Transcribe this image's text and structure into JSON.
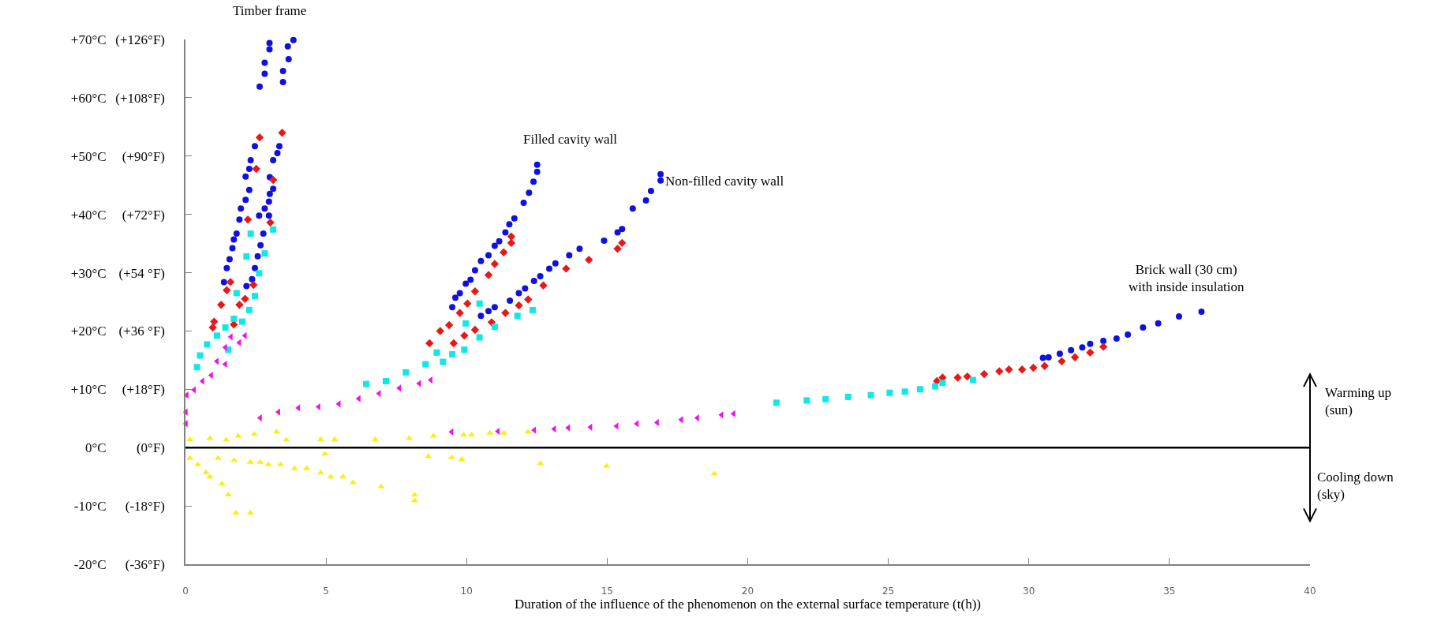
{
  "chart_data": {
    "type": "scatter",
    "xlabel": "Duration of the influence of the phenomenon on the external surface temperature (t(h))",
    "xlim": [
      0,
      40
    ],
    "xticks": [
      0,
      5,
      10,
      15,
      20,
      25,
      30,
      35,
      40
    ],
    "ylim": [
      -20,
      70
    ],
    "yticks": [
      {
        "value": 70,
        "label": "+70°C"
      },
      {
        "value": 60,
        "label": "+60°C"
      },
      {
        "value": 50,
        "label": "+50°C"
      },
      {
        "value": 40,
        "label": "+40°C"
      },
      {
        "value": 30,
        "label": "+30°C"
      },
      {
        "value": 20,
        "label": "+20°C"
      },
      {
        "value": 10,
        "label": "+10°C"
      },
      {
        "value": 0,
        "label": "0°C"
      },
      {
        "value": -10,
        "label": "-10°C"
      },
      {
        "value": -20,
        "label": "-20°C"
      }
    ],
    "y2lim": [
      -36,
      126
    ],
    "y2ticks": [
      {
        "value": 126,
        "label": "(+126°F)"
      },
      {
        "value": 108,
        "label": "(+108°F)"
      },
      {
        "value": 90,
        "label": "(+90°F)"
      },
      {
        "value": 72,
        "label": "(+72°F)"
      },
      {
        "value": 54,
        "label": "(+54 °F)"
      },
      {
        "value": 36,
        "label": "(+36 °F)"
      },
      {
        "value": 18,
        "label": "(+18°F)"
      },
      {
        "value": 0,
        "label": "(0°F)"
      },
      {
        "value": -18,
        "label": "(-18°F)"
      },
      {
        "value": -36,
        "label": "(-36°F)"
      }
    ],
    "ref_lines": [
      {
        "axis": "y",
        "value": 0,
        "color": "#000000",
        "line_style": "solid"
      }
    ],
    "annotations": [
      "Timber frame",
      "Filled cavity wall",
      "Non-filled cavity wall",
      "Brick wall (30 cm)\nwith inside insulation",
      "Warming up\n(sun)",
      "Cooling down\n(sky)"
    ],
    "series": [
      {
        "color": "#1010e0",
        "marker": "circle",
        "x": [
          2.99,
          2.99,
          2.82,
          2.82,
          2.64,
          2.47,
          2.32,
          2.27,
          2.14,
          2.27,
          2.14,
          1.97,
          1.92,
          1.82,
          1.72,
          1.67,
          1.57,
          1.47,
          1.37,
          3.84,
          3.64,
          3.67,
          3.47,
          3.47,
          3.34,
          3.27,
          3.12,
          3.0,
          3.12,
          3.0,
          2.97,
          2.82,
          2.97,
          2.62,
          2.77,
          2.67,
          2.57,
          2.47,
          2.37,
          2.17,
          12.51,
          12.51,
          12.38,
          12.22,
          12.03,
          11.7,
          11.52,
          11.38,
          11.16,
          11.0,
          10.78,
          10.51,
          10.3,
          10.14,
          9.97,
          9.76,
          9.6,
          9.49,
          16.9,
          16.9,
          16.56,
          16.38,
          15.91,
          15.53,
          15.37,
          14.89,
          14.02,
          13.65,
          13.16,
          12.94,
          12.62,
          12.4,
          12.08,
          11.86,
          11.54,
          11.0,
          10.78,
          10.51,
          30.5,
          30.7,
          31.1,
          31.5,
          31.9,
          32.18,
          32.65,
          33.12,
          33.52,
          34.06,
          34.6,
          35.34,
          36.14
        ],
        "values": [
          69.4,
          68.3,
          66.0,
          64.1,
          61.9,
          51.7,
          49.3,
          47.8,
          46.5,
          44.2,
          42.5,
          41.0,
          39.1,
          36.7,
          35.7,
          34.2,
          32.3,
          30.8,
          28.4,
          69.9,
          68.8,
          66.6,
          64.6,
          62.7,
          51.7,
          50.5,
          49.3,
          46.4,
          44.4,
          43.5,
          42.2,
          41.0,
          39.8,
          39.8,
          36.7,
          34.7,
          32.8,
          30.8,
          28.9,
          27.7,
          48.5,
          47.3,
          45.6,
          43.7,
          42.0,
          39.3,
          38.3,
          36.9,
          35.4,
          34.6,
          33.0,
          32.0,
          30.4,
          28.8,
          28.1,
          26.5,
          25.7,
          24.1,
          46.9,
          45.8,
          44.0,
          42.4,
          41.0,
          37.5,
          36.9,
          35.5,
          34.1,
          33.0,
          31.6,
          30.7,
          29.4,
          28.6,
          27.3,
          26.5,
          25.2,
          24.1,
          23.4,
          22.6,
          15.4,
          15.5,
          16.1,
          16.7,
          17.2,
          17.8,
          18.3,
          18.7,
          19.4,
          20.6,
          21.3,
          22.5,
          23.3
        ]
      },
      {
        "color": "#e81818",
        "marker": "diamond",
        "x": [
          2.64,
          3.44,
          2.52,
          3.12,
          2.22,
          3.02,
          1.6,
          1.47,
          1.27,
          1.02,
          0.97,
          1.92,
          1.72,
          2.42,
          2.12,
          11.59,
          11.59,
          11.32,
          11.0,
          10.78,
          10.3,
          10.03,
          9.76,
          9.38,
          9.06,
          8.68,
          15.53,
          15.37,
          14.35,
          13.54,
          12.73,
          12.19,
          11.86,
          11.38,
          10.89,
          10.3,
          9.92,
          9.54,
          26.73,
          26.93,
          27.47,
          27.81,
          28.41,
          28.95,
          29.29,
          29.76,
          30.16,
          30.56,
          31.17,
          31.64,
          32.18,
          32.65
        ],
        "values": [
          53.2,
          54.0,
          47.8,
          45.9,
          39.1,
          38.6,
          28.4,
          27.0,
          24.5,
          21.6,
          20.6,
          24.5,
          21.1,
          27.9,
          25.5,
          36.2,
          35.1,
          33.5,
          31.5,
          29.6,
          26.8,
          24.7,
          23.1,
          21.0,
          20.0,
          17.9,
          35.1,
          34.1,
          32.2,
          30.7,
          27.8,
          25.4,
          24.4,
          23.1,
          21.5,
          20.2,
          19.2,
          17.9,
          11.4,
          12.0,
          12.0,
          12.2,
          12.6,
          13.1,
          13.4,
          13.4,
          13.7,
          14.0,
          14.8,
          15.5,
          16.3,
          17.3
        ]
      },
      {
        "color": "#10e8e8",
        "marker": "square",
        "x": [
          3.12,
          2.32,
          2.82,
          2.17,
          2.62,
          2.47,
          1.82,
          2.27,
          1.72,
          1.42,
          1.12,
          0.77,
          0.52,
          0.41,
          2.02,
          1.52,
          6.43,
          7.13,
          7.84,
          8.54,
          8.94,
          12.35,
          11.81,
          11.0,
          10.46,
          10.46,
          9.97,
          9.92,
          9.49,
          9.16,
          21.02,
          22.1,
          22.77,
          23.57,
          24.38,
          25.05,
          25.59,
          26.13,
          26.67,
          26.93,
          28.01
        ],
        "values": [
          37.4,
          36.7,
          33.3,
          32.8,
          29.9,
          26.0,
          26.5,
          23.6,
          22.1,
          20.6,
          19.2,
          17.7,
          15.8,
          13.8,
          21.6,
          16.8,
          10.9,
          11.4,
          12.9,
          14.3,
          16.3,
          23.6,
          22.6,
          20.7,
          24.7,
          18.9,
          21.3,
          16.8,
          16.0,
          14.7,
          7.7,
          8.1,
          8.3,
          8.7,
          9.0,
          9.4,
          9.6,
          10.0,
          10.5,
          11.1,
          11.6
        ]
      },
      {
        "color": "#f010f0",
        "marker": "triangle-left",
        "x": [
          2.12,
          1.92,
          1.62,
          1.42,
          1.42,
          1.12,
          0.92,
          0.61,
          0.31,
          0.05,
          0.02,
          0.02,
          2.66,
          3.31,
          4.02,
          4.74,
          5.46,
          6.17,
          6.89,
          7.61,
          8.32,
          8.73,
          9.47,
          11.12,
          12.41,
          13.12,
          13.62,
          14.41,
          15.34,
          16.06,
          16.78,
          17.64,
          18.21,
          19.07,
          19.5
        ],
        "values": [
          19.2,
          18.0,
          19.0,
          17.2,
          14.3,
          14.8,
          12.4,
          11.4,
          9.9,
          9.0,
          6.1,
          4.1,
          5.1,
          6.1,
          6.8,
          7.0,
          7.5,
          8.4,
          9.3,
          10.2,
          11.0,
          11.6,
          2.7,
          2.8,
          3.0,
          3.2,
          3.4,
          3.5,
          3.7,
          4.1,
          4.3,
          4.8,
          5.1,
          5.6,
          5.8
        ]
      },
      {
        "color": "#f8f010",
        "marker": "triangle",
        "x": [
          0.16,
          0.87,
          1.45,
          1.88,
          2.45,
          3.24,
          3.59,
          4.81,
          5.31,
          6.75,
          7.96,
          8.82,
          9.9,
          10.18,
          10.83,
          11.33,
          12.19,
          0.16,
          0.44,
          0.73,
          0.87,
          1.3,
          1.52,
          1.8,
          2.31,
          1.16,
          1.73,
          2.31,
          2.66,
          2.95,
          3.38,
          3.88,
          4.31,
          4.96,
          4.81,
          5.17,
          5.6,
          5.96,
          6.96,
          8.15,
          8.15,
          8.64,
          9.47,
          9.83,
          12.62,
          14.98,
          18.81
        ],
        "values": [
          1.4,
          1.6,
          1.3,
          2.0,
          2.3,
          2.7,
          1.3,
          1.4,
          1.4,
          1.4,
          1.6,
          2.0,
          2.2,
          2.2,
          2.5,
          2.5,
          2.7,
          -1.8,
          -2.9,
          -4.3,
          -5.0,
          -6.2,
          -8.1,
          -11.2,
          -11.2,
          -1.8,
          -2.2,
          -2.5,
          -2.5,
          -2.9,
          -2.9,
          -3.6,
          -3.6,
          -1.1,
          -4.3,
          -5.0,
          -5.0,
          -6.0,
          -6.7,
          -8.1,
          -9.1,
          -1.5,
          -1.7,
          -2.0,
          -2.7,
          -3.2,
          -4.5
        ]
      }
    ]
  }
}
